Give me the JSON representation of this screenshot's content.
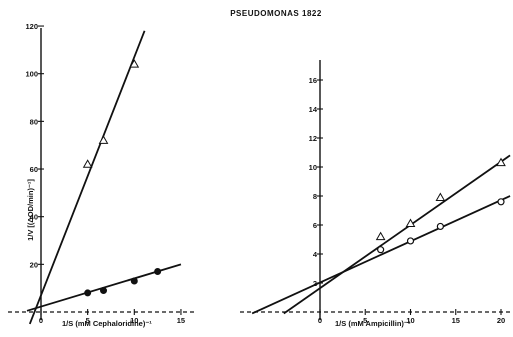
{
  "title": "PSEUDOMONAS 1822",
  "chart_data": [
    {
      "type": "scatter",
      "xlabel": "1/S (mM Cephaloridine)⁻¹",
      "ylabel": "1/V [(ΔOD/min)⁻¹]",
      "xlim": [
        -5,
        15
      ],
      "ylim": [
        -5,
        120
      ],
      "x_ticks": [
        0,
        5,
        10,
        15
      ],
      "x_tick_labels": [
        "0",
        "5",
        "10",
        "15"
      ],
      "y_ticks": [
        20,
        40,
        60,
        80,
        100,
        120
      ],
      "y_tick_labels": [
        "20",
        "40",
        "60",
        "80",
        "100",
        "120"
      ],
      "grid": false,
      "series": [
        {
          "marker": "triangle",
          "points": [
            {
              "x": 5,
              "y": 62
            },
            {
              "x": 6.7,
              "y": 72
            },
            {
              "x": 10,
              "y": 104
            }
          ],
          "fit": [
            {
              "x": -1.2,
              "y": -5
            },
            {
              "x": 11.1,
              "y": 118
            }
          ]
        },
        {
          "marker": "filled-circle",
          "points": [
            {
              "x": 5,
              "y": 8
            },
            {
              "x": 6.7,
              "y": 9
            },
            {
              "x": 10,
              "y": 13
            },
            {
              "x": 12.5,
              "y": 17
            }
          ],
          "fit": [
            {
              "x": -1.5,
              "y": 0.5
            },
            {
              "x": 15,
              "y": 20
            }
          ]
        }
      ]
    },
    {
      "type": "scatter",
      "xlabel": "1/S (mM Ampicillin)⁻¹",
      "ylabel": "",
      "xlim": [
        -10,
        20
      ],
      "ylim": [
        -1,
        16
      ],
      "x_ticks": [
        0,
        5,
        10,
        15,
        20
      ],
      "x_tick_labels": [
        "0",
        "5",
        "10",
        "15",
        "20"
      ],
      "y_ticks": [
        2,
        4,
        6,
        8,
        10,
        12,
        14,
        16
      ],
      "y_tick_labels": [
        "2",
        "4",
        "6",
        "8",
        "10",
        "12",
        "14",
        "16"
      ],
      "grid": false,
      "series": [
        {
          "marker": "triangle",
          "points": [
            {
              "x": 6.7,
              "y": 5.2
            },
            {
              "x": 10,
              "y": 6.1
            },
            {
              "x": 13.3,
              "y": 7.9
            },
            {
              "x": 20,
              "y": 10.3
            }
          ],
          "fit": [
            {
              "x": -4,
              "y": -0.1
            },
            {
              "x": 21,
              "y": 10.8
            }
          ]
        },
        {
          "marker": "open-circle",
          "points": [
            {
              "x": 6.7,
              "y": 4.3
            },
            {
              "x": 10,
              "y": 4.9
            },
            {
              "x": 13.3,
              "y": 5.9
            },
            {
              "x": 20,
              "y": 7.6
            }
          ],
          "fit": [
            {
              "x": -7.5,
              "y": -0.1
            },
            {
              "x": 21,
              "y": 8.0
            }
          ]
        }
      ]
    }
  ]
}
